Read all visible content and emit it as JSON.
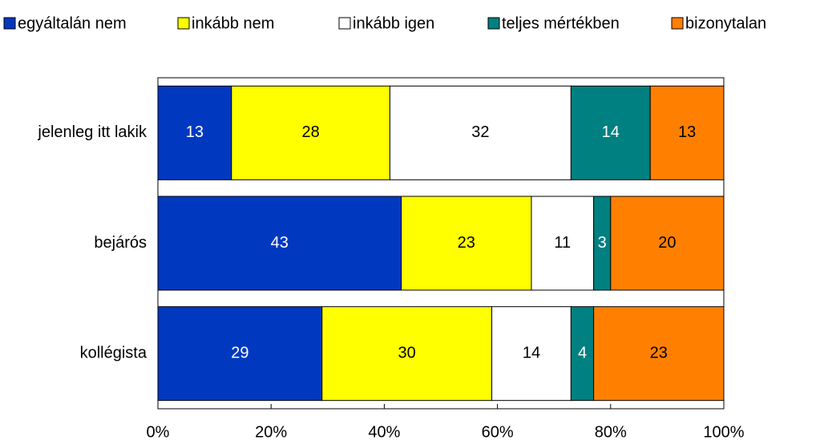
{
  "chart_data": {
    "type": "stacked-bar-horizontal",
    "categories": [
      "jelenleg itt lakik",
      "bejárós",
      "kollégista"
    ],
    "series": [
      {
        "name": "egyáltalán nem",
        "color": "#0039c0",
        "values": [
          13,
          43,
          29
        ]
      },
      {
        "name": "inkább nem",
        "color": "#ffff00",
        "values": [
          28,
          23,
          30
        ]
      },
      {
        "name": "inkább igen",
        "color": "#ffffff",
        "values": [
          32,
          11,
          14
        ]
      },
      {
        "name": "teljes mértékben",
        "color": "#008080",
        "values": [
          14,
          3,
          4
        ]
      },
      {
        "name": "bizonytalan",
        "color": "#ff8000",
        "values": [
          13,
          20,
          23
        ]
      }
    ],
    "xlim": [
      0,
      100
    ],
    "xticks": [
      {
        "value": 0,
        "label": "0%"
      },
      {
        "value": 20,
        "label": "20%"
      },
      {
        "value": 40,
        "label": "40%"
      },
      {
        "value": 60,
        "label": "60%"
      },
      {
        "value": 80,
        "label": "80%"
      },
      {
        "value": 100,
        "label": "100%"
      }
    ],
    "legend": "top"
  }
}
